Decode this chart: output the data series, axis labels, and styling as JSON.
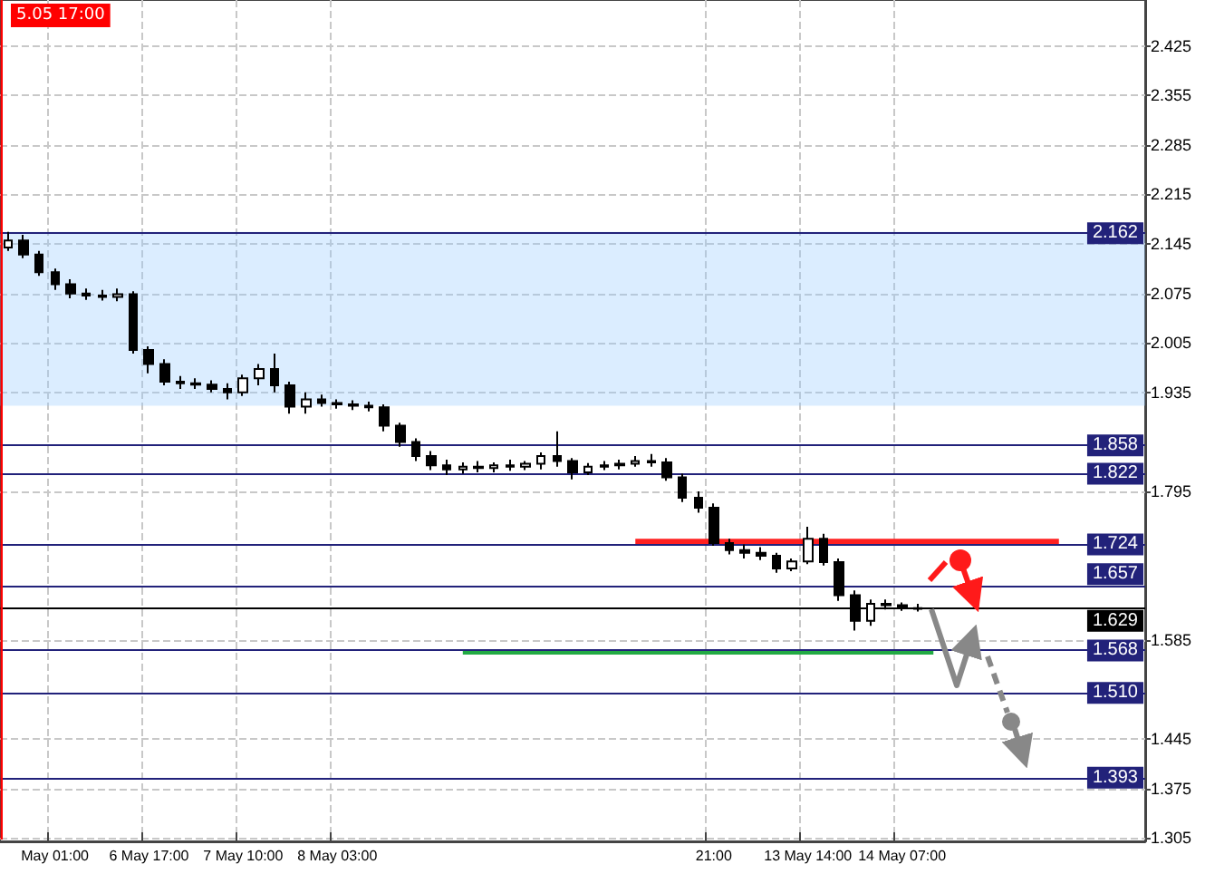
{
  "chart_data": {
    "type": "candlestick",
    "color": "#000000",
    "grid": true,
    "categories": [
      null,
      null,
      null,
      "May 01:00",
      null,
      null,
      null,
      null,
      null,
      "6 May 17:00",
      null,
      null,
      null,
      null,
      null,
      "7 May 10:00",
      null,
      null,
      null,
      null,
      null,
      "8 May 03:00",
      null,
      null,
      null,
      null,
      null,
      null,
      null,
      null,
      null,
      null,
      null,
      null,
      null,
      null,
      null,
      null,
      null,
      null,
      null,
      null,
      null,
      null,
      null,
      "21:00",
      null,
      null,
      null,
      null,
      null,
      "13 May 14:00",
      null,
      null,
      null,
      null,
      null,
      "14 May 07:00",
      null,
      null,
      null,
      null,
      null,
      null,
      null,
      null,
      null,
      null,
      null,
      null,
      null,
      null,
      null
    ],
    "ohlc": [
      [
        2.14,
        2.162,
        2.135,
        2.15
      ],
      [
        2.15,
        2.158,
        2.125,
        2.13
      ],
      [
        2.13,
        2.135,
        2.1,
        2.105
      ],
      [
        2.105,
        2.11,
        2.08,
        2.088
      ],
      [
        2.088,
        2.095,
        2.068,
        2.075
      ],
      [
        2.075,
        2.082,
        2.066,
        2.072
      ],
      [
        2.072,
        2.08,
        2.065,
        2.07
      ],
      [
        2.07,
        2.082,
        2.064,
        2.074
      ],
      [
        2.074,
        2.078,
        1.99,
        1.995
      ],
      [
        1.995,
        2.0,
        1.962,
        1.975
      ],
      [
        1.975,
        1.982,
        1.945,
        1.95
      ],
      [
        1.95,
        1.958,
        1.94,
        1.948
      ],
      [
        1.948,
        1.955,
        1.94,
        1.946
      ],
      [
        1.946,
        1.952,
        1.935,
        1.94
      ],
      [
        1.94,
        1.948,
        1.925,
        1.935
      ],
      [
        1.935,
        1.96,
        1.93,
        1.955
      ],
      [
        1.955,
        1.975,
        1.945,
        1.968
      ],
      [
        1.968,
        1.99,
        1.935,
        1.945
      ],
      [
        1.945,
        1.95,
        1.905,
        1.915
      ],
      [
        1.915,
        1.935,
        1.905,
        1.925
      ],
      [
        1.925,
        1.932,
        1.915,
        1.92
      ],
      [
        1.92,
        1.925,
        1.912,
        1.918
      ],
      [
        1.918,
        1.924,
        1.91,
        1.916
      ],
      [
        1.916,
        1.922,
        1.908,
        1.914
      ],
      [
        1.914,
        1.918,
        1.88,
        1.888
      ],
      [
        1.888,
        1.892,
        1.858,
        1.865
      ],
      [
        1.865,
        1.87,
        1.838,
        1.845
      ],
      [
        1.845,
        1.852,
        1.825,
        1.832
      ],
      [
        1.832,
        1.84,
        1.818,
        1.826
      ],
      [
        1.826,
        1.836,
        1.82,
        1.83
      ],
      [
        1.83,
        1.838,
        1.822,
        1.828
      ],
      [
        1.828,
        1.836,
        1.822,
        1.832
      ],
      [
        1.832,
        1.84,
        1.824,
        1.83
      ],
      [
        1.83,
        1.838,
        1.825,
        1.834
      ],
      [
        1.834,
        1.85,
        1.826,
        1.845
      ],
      [
        1.845,
        1.88,
        1.83,
        1.838
      ],
      [
        1.838,
        1.842,
        1.812,
        1.822
      ],
      [
        1.822,
        1.835,
        1.818,
        1.83
      ],
      [
        1.83,
        1.838,
        1.825,
        1.832
      ],
      [
        1.832,
        1.84,
        1.826,
        1.834
      ],
      [
        1.834,
        1.845,
        1.83,
        1.838
      ],
      [
        1.838,
        1.848,
        1.83,
        1.836
      ],
      [
        1.836,
        1.842,
        1.81,
        1.815
      ],
      [
        1.815,
        1.82,
        1.78,
        1.786
      ],
      [
        1.786,
        1.795,
        1.765,
        1.772
      ],
      [
        1.772,
        1.778,
        1.718,
        1.722
      ],
      [
        1.722,
        1.728,
        1.706,
        1.712
      ],
      [
        1.712,
        1.72,
        1.7,
        1.708
      ],
      [
        1.708,
        1.716,
        1.698,
        1.704
      ],
      [
        1.704,
        1.708,
        1.68,
        1.686
      ],
      [
        1.686,
        1.7,
        1.682,
        1.696
      ],
      [
        1.696,
        1.745,
        1.692,
        1.728
      ],
      [
        1.728,
        1.735,
        1.69,
        1.695
      ],
      [
        1.695,
        1.7,
        1.64,
        1.648
      ],
      [
        1.648,
        1.655,
        1.598,
        1.612
      ],
      [
        1.612,
        1.642,
        1.605,
        1.636
      ],
      [
        1.636,
        1.642,
        1.628,
        1.634
      ],
      [
        1.634,
        1.638,
        1.626,
        1.63
      ],
      [
        1.63,
        1.636,
        1.625,
        1.629
      ],
      null,
      null,
      null,
      null,
      null,
      null,
      null,
      null,
      null,
      null,
      null,
      null,
      null,
      null
    ],
    "series": [
      {
        "type": "line",
        "color": "#ff2020",
        "values": [
          null,
          null,
          null,
          null,
          null,
          null,
          null,
          null,
          null,
          null,
          null,
          null,
          null,
          null,
          null,
          null,
          null,
          null,
          null,
          null,
          null,
          null,
          null,
          null,
          null,
          null,
          null,
          null,
          null,
          null,
          null,
          null,
          null,
          null,
          null,
          null,
          null,
          null,
          null,
          null,
          1.724,
          1.724,
          1.724,
          1.724,
          1.724,
          1.724,
          1.724,
          1.724,
          1.724,
          1.724,
          1.724,
          1.724,
          1.724,
          1.724,
          1.724,
          1.724,
          1.724,
          1.724,
          1.724,
          1.724,
          1.724,
          1.724,
          1.724,
          1.724,
          1.724,
          1.724,
          1.724,
          1.724,
          null,
          null,
          null,
          null,
          null
        ]
      },
      {
        "type": "line",
        "color": "#22aa44",
        "values": [
          null,
          null,
          null,
          null,
          null,
          null,
          null,
          null,
          null,
          null,
          null,
          null,
          null,
          null,
          null,
          null,
          null,
          null,
          null,
          null,
          null,
          null,
          null,
          null,
          null,
          null,
          null,
          null,
          null,
          1.568,
          1.568,
          1.568,
          1.568,
          1.568,
          1.568,
          1.568,
          1.568,
          1.568,
          1.568,
          1.568,
          1.568,
          1.568,
          1.568,
          1.568,
          1.568,
          1.568,
          1.568,
          1.568,
          1.568,
          1.568,
          1.568,
          1.568,
          1.568,
          1.568,
          1.568,
          1.568,
          1.568,
          1.568,
          1.568,
          1.568,
          null,
          null,
          null,
          null,
          null,
          null,
          null,
          null,
          null,
          null,
          null,
          null,
          null
        ]
      }
    ],
    "ref_lines": [
      {
        "axis": "y",
        "value": 2.162,
        "label": "2.162",
        "color": "#22227a"
      },
      {
        "axis": "y",
        "value": 1.858,
        "label": "1.858",
        "color": "#22227a"
      },
      {
        "axis": "y",
        "value": 1.822,
        "label": "1.822",
        "color": "#22227a"
      },
      {
        "axis": "y",
        "value": 1.724,
        "label": "1.724",
        "color": "#22227a"
      },
      {
        "axis": "y",
        "value": 1.657,
        "label": "1.657",
        "color": "#22227a"
      },
      {
        "axis": "y",
        "value": 1.629,
        "label": "1.629",
        "color": "#000000"
      },
      {
        "axis": "y",
        "value": 1.568,
        "label": "1.568",
        "color": "#22227a"
      },
      {
        "axis": "y",
        "value": 1.51,
        "label": "1.510",
        "color": "#22227a"
      },
      {
        "axis": "y",
        "value": 1.393,
        "label": "1.393",
        "color": "#22227a"
      }
    ],
    "annotations": [
      "5.05 17:00"
    ],
    "bands": [
      {
        "axis": "y",
        "from": 1.916,
        "to": 2.162,
        "color": "#99ccff"
      }
    ],
    "ylim": [
      1.3,
      2.49
    ],
    "yticks": [
      1.305,
      1.375,
      1.445,
      1.585,
      1.795,
      1.935,
      2.005,
      2.075,
      2.145,
      2.215,
      2.285,
      2.355,
      2.425
    ]
  }
}
